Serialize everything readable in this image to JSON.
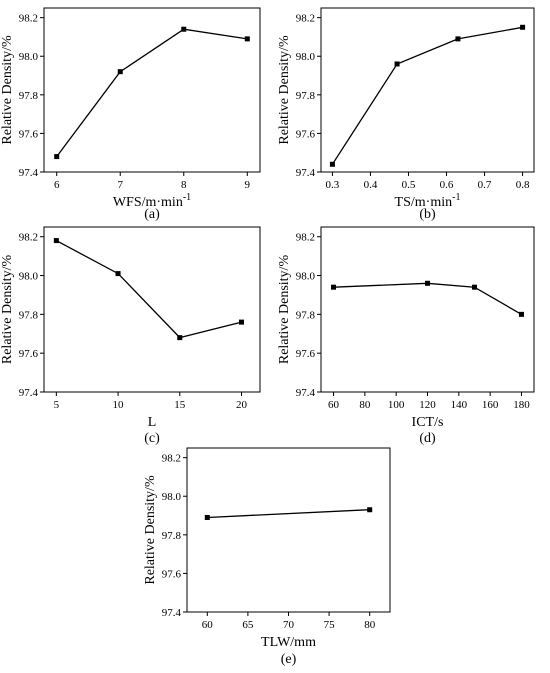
{
  "chart_data": [
    {
      "panel_label": "(a)",
      "type": "line",
      "xlabel": "WFS/m·min-1",
      "ylabel": "Relative Density/%",
      "x": [
        6,
        7,
        8,
        9
      ],
      "values": [
        97.48,
        97.92,
        98.14,
        98.09
      ],
      "xlim": [
        5.8,
        9.2
      ],
      "ylim": [
        97.4,
        98.25
      ],
      "xticks": [
        6,
        7,
        8,
        9
      ],
      "xtick_labels": [
        "6",
        "7",
        "8",
        "9"
      ],
      "yticks": [
        97.4,
        97.6,
        97.8,
        98.0,
        98.2
      ],
      "ytick_labels": [
        "97.4",
        "97.6",
        "97.8",
        "98.0",
        "98.2"
      ],
      "grid": false
    },
    {
      "panel_label": "(b)",
      "type": "line",
      "xlabel": "TS/m·min-1",
      "ylabel": "Relative Density/%",
      "x": [
        0.3,
        0.47,
        0.63,
        0.8
      ],
      "values": [
        97.44,
        97.96,
        98.09,
        98.15
      ],
      "xlim": [
        0.27,
        0.83
      ],
      "ylim": [
        97.4,
        98.25
      ],
      "xticks": [
        0.3,
        0.4,
        0.5,
        0.6,
        0.7,
        0.8
      ],
      "xtick_labels": [
        "0.3",
        "0.4",
        "0.5",
        "0.6",
        "0.7",
        "0.8"
      ],
      "yticks": [
        97.4,
        97.6,
        97.8,
        98.0,
        98.2
      ],
      "ytick_labels": [
        "97.4",
        "97.6",
        "97.8",
        "98.0",
        "98.2"
      ],
      "grid": false
    },
    {
      "panel_label": "(c)",
      "type": "line",
      "xlabel": "L",
      "ylabel": "Relative Density/%",
      "x": [
        5,
        10,
        15,
        20
      ],
      "values": [
        98.18,
        98.01,
        97.68,
        97.76
      ],
      "xlim": [
        4,
        21.5
      ],
      "ylim": [
        97.4,
        98.25
      ],
      "xticks": [
        5,
        10,
        15,
        20
      ],
      "xtick_labels": [
        "5",
        "10",
        "15",
        "20"
      ],
      "yticks": [
        97.4,
        97.6,
        97.8,
        98.0,
        98.2
      ],
      "ytick_labels": [
        "97.4",
        "97.6",
        "97.8",
        "98.0",
        "98.2"
      ],
      "grid": false
    },
    {
      "panel_label": "(d)",
      "type": "line",
      "xlabel": "ICT/s",
      "ylabel": "Relative Density/%",
      "x": [
        60,
        120,
        150,
        180
      ],
      "values": [
        97.94,
        97.96,
        97.94,
        97.8
      ],
      "xlim": [
        52,
        188
      ],
      "ylim": [
        97.4,
        98.25
      ],
      "xticks": [
        60,
        80,
        100,
        120,
        140,
        160,
        180
      ],
      "xtick_labels": [
        "60",
        "80",
        "100",
        "120",
        "140",
        "160",
        "180"
      ],
      "yticks": [
        97.4,
        97.6,
        97.8,
        98.0,
        98.2
      ],
      "ytick_labels": [
        "97.4",
        "97.6",
        "97.8",
        "98.0",
        "98.2"
      ],
      "grid": false
    },
    {
      "panel_label": "(e)",
      "type": "line",
      "xlabel": "TLW/mm",
      "ylabel": "Relative Density/%",
      "x": [
        60,
        80
      ],
      "values": [
        97.89,
        97.93
      ],
      "xlim": [
        57.5,
        82.5
      ],
      "ylim": [
        97.4,
        98.25
      ],
      "xticks": [
        60,
        65,
        70,
        75,
        80
      ],
      "xtick_labels": [
        "60",
        "65",
        "70",
        "75",
        "80"
      ],
      "yticks": [
        97.4,
        97.6,
        97.8,
        98.0,
        98.2
      ],
      "ytick_labels": [
        "97.4",
        "97.6",
        "97.8",
        "98.0",
        "98.2"
      ],
      "grid": false
    }
  ]
}
